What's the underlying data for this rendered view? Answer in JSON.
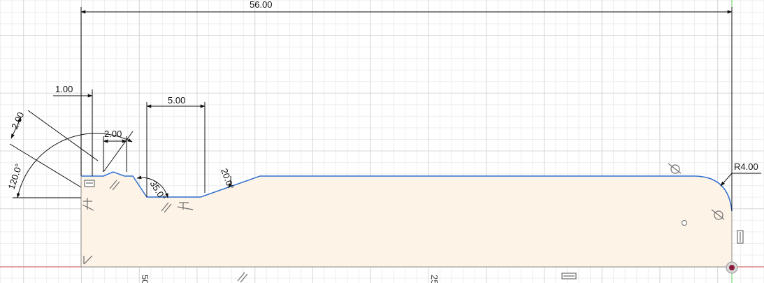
{
  "sketch": {
    "colors": {
      "profile_line": "#2f6fd0",
      "profile_fill": "#fdf3e6",
      "dimension_line": "#111111",
      "x_axis": "#e06060",
      "y_axis": "#5ac85a",
      "constraint_icon": "#6e6e6e",
      "origin_point": "#8a1c3c"
    },
    "dimensions": {
      "total_length": "56.00",
      "offset_1": "1.00",
      "chamfer_2": "2.00",
      "chamfer_2b": "2.00",
      "groove_width": "5.00",
      "angle_120": "120.0°",
      "angle_35": "35.0°",
      "angle_20": "20.0°",
      "radius": "R4.00"
    },
    "ruler": {
      "label_50": "50",
      "label_25": "25"
    },
    "constraint_icons": [
      "parallel-icon",
      "horizontal-icon",
      "coincident-icon",
      "tangent-icon",
      "perpendicular-icon",
      "vertical-icon"
    ]
  }
}
